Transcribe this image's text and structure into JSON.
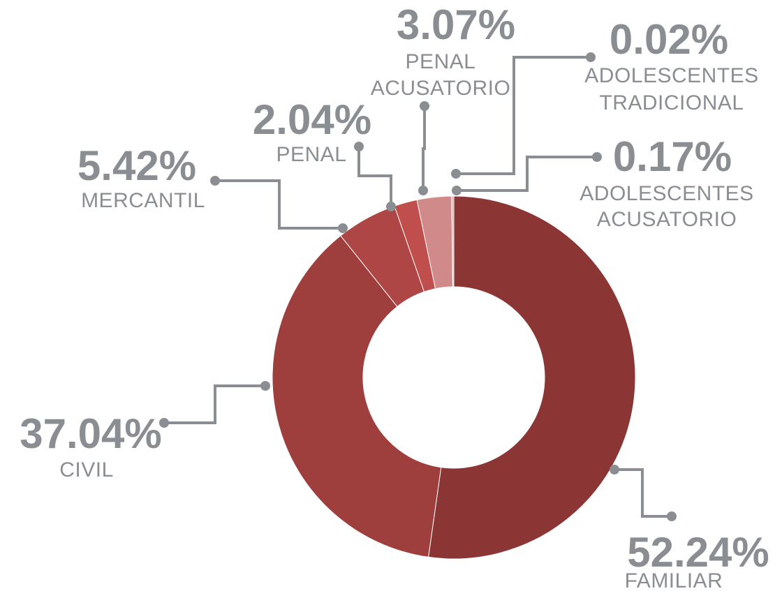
{
  "chart_data": {
    "type": "pie",
    "variant": "donut",
    "grid": false,
    "legend": "none",
    "slices": [
      {
        "label": "FAMILIAR",
        "label_lines": [
          "FAMILIAR"
        ],
        "value": 52.24,
        "display": "52.24%",
        "color": "#8b3535"
      },
      {
        "label": "CIVIL",
        "label_lines": [
          "CIVIL"
        ],
        "value": 37.04,
        "display": "37.04%",
        "color": "#9e3f3e"
      },
      {
        "label": "MERCANTIL",
        "label_lines": [
          "MERCANTIL"
        ],
        "value": 5.42,
        "display": "5.42%",
        "color": "#ad4644"
      },
      {
        "label": "PENAL",
        "label_lines": [
          "PENAL"
        ],
        "value": 2.04,
        "display": "2.04%",
        "color": "#c04e4c"
      },
      {
        "label": "PENAL ACUSATORIO",
        "label_lines": [
          "PENAL",
          "ACUSATORIO"
        ],
        "value": 3.07,
        "display": "3.07%",
        "color": "#d08a89"
      },
      {
        "label": "ADOLESCENTES TRADICIONAL",
        "label_lines": [
          "ADOLESCENTES",
          "TRADICIONAL"
        ],
        "value": 0.02,
        "display": "0.02%",
        "color": "#e3b0ae"
      },
      {
        "label": "ADOLESCENTES ACUSATORIO",
        "label_lines": [
          "ADOLESCENTES",
          "ACUSATORIO"
        ],
        "value": 0.17,
        "display": "0.17%",
        "color": "#d9a2a0"
      }
    ]
  }
}
